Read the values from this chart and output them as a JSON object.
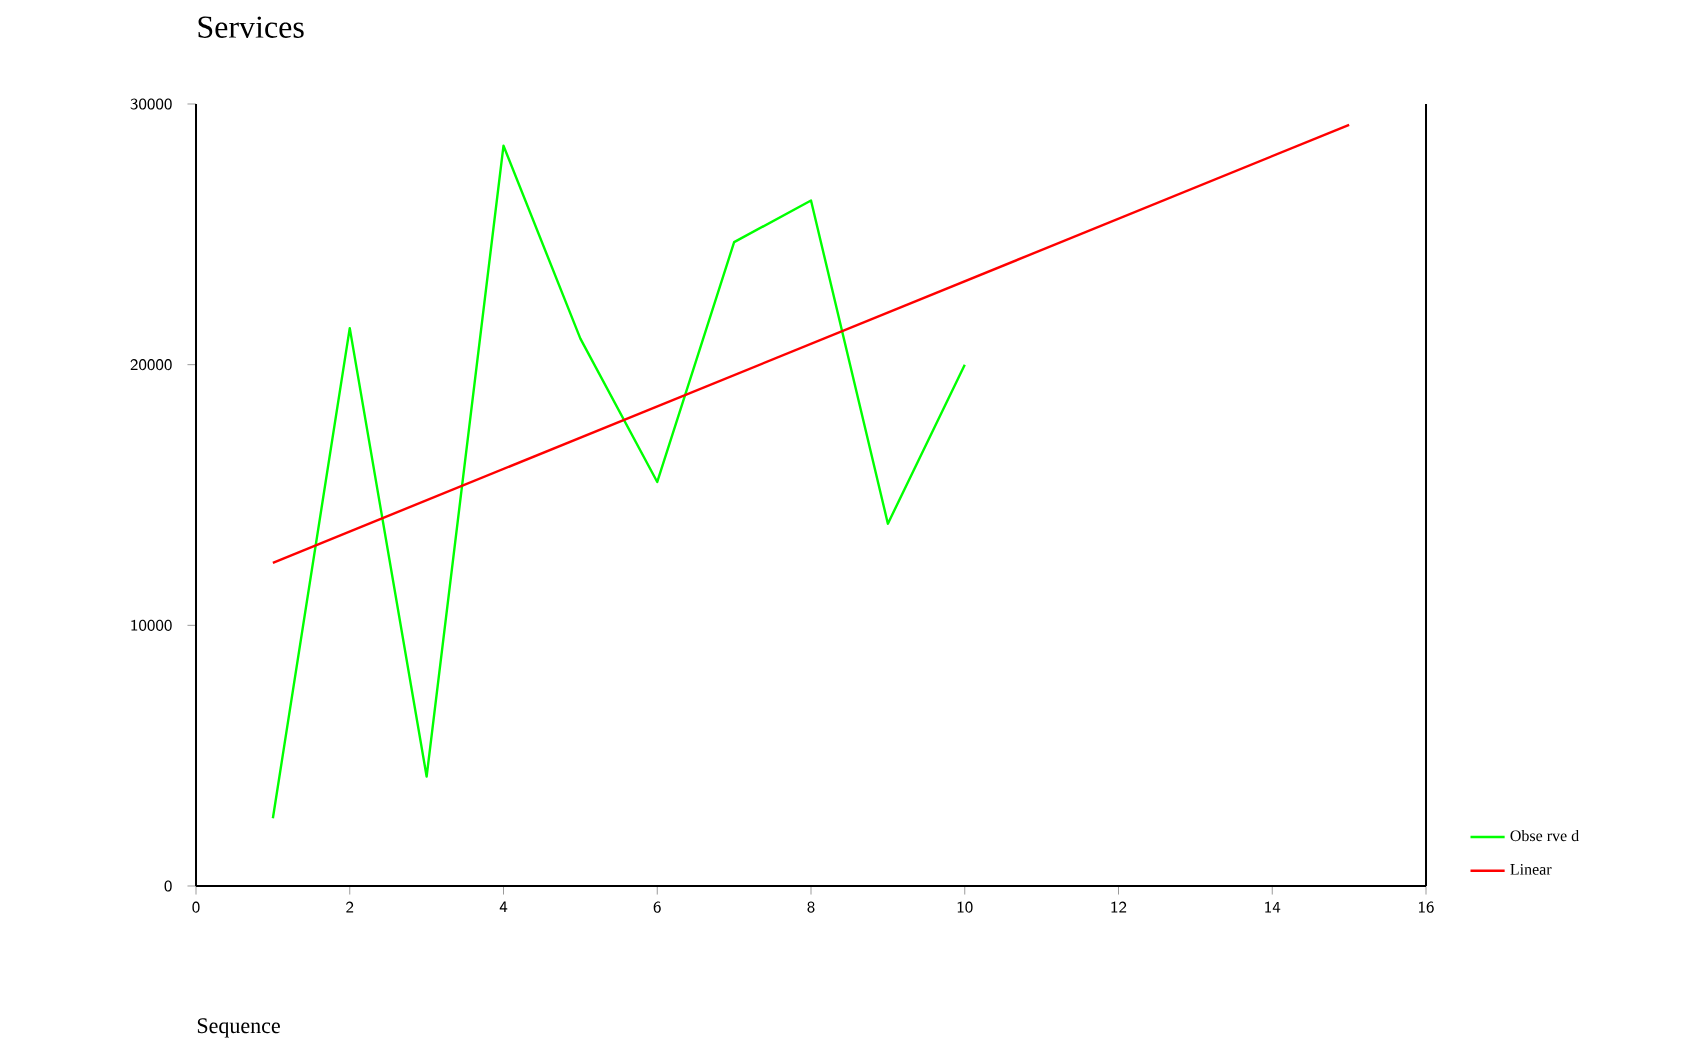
{
  "chart_data": {
    "type": "line",
    "title": "Services",
    "xlabel": "Sequence",
    "xlim": [
      0,
      16
    ],
    "xticks": [
      0,
      2,
      4,
      6,
      8,
      10,
      12,
      14,
      16
    ],
    "ylim": [
      0,
      30000
    ],
    "yticks": [
      0,
      10000,
      20000,
      30000
    ],
    "legend": "bottom right",
    "grid": false,
    "marker": "none",
    "series": [
      {
        "name": "Obse rve d",
        "color": "#00ff00",
        "x": [
          1,
          2,
          3,
          4,
          5,
          6,
          7,
          8,
          9,
          10
        ],
        "values": [
          2600,
          21400,
          4200,
          28400,
          21000,
          15500,
          24700,
          26300,
          13900,
          20000
        ]
      },
      {
        "name": "Linear",
        "color": "#ff0000",
        "x": [
          1,
          15
        ],
        "values": [
          12400,
          29200
        ]
      }
    ]
  }
}
